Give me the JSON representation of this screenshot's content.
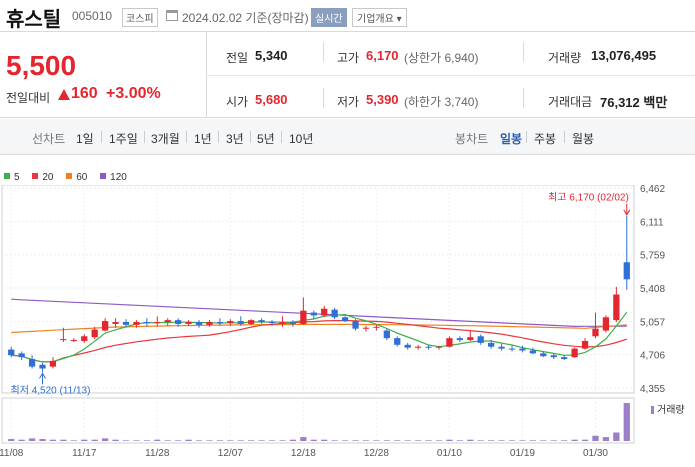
{
  "header": {
    "name": "휴스틸",
    "code": "005010",
    "market": "코스피",
    "date": "2024.02.02 기준(장마감)",
    "realtime": "실시간",
    "company_info": "기업개요"
  },
  "price": {
    "current": "5,500",
    "vs_label": "전일대비",
    "change": "160",
    "rate": "+3.00%"
  },
  "stats": {
    "prev_label": "전일",
    "prev": "5,340",
    "high_label": "고가",
    "high": "6,170",
    "upper_limit": "(상한가 6,940)",
    "volume_label": "거래량",
    "volume": "13,076,495",
    "open_label": "시가",
    "open": "5,680",
    "low_label": "저가",
    "low": "5,390",
    "lower_limit": "(하한가 3,740)",
    "amount_label": "거래대금",
    "amount": "76,312 백만"
  },
  "periods": {
    "line_label": "선차트",
    "line_items": [
      "1일",
      "1주일",
      "3개월",
      "1년",
      "3년",
      "5년",
      "10년"
    ],
    "candle_label": "봉차트",
    "candle_items": [
      "일봉",
      "주봉",
      "월봉"
    ],
    "candle_active": "일봉"
  },
  "legend": [
    {
      "name": "5",
      "color": "#3bb04a"
    },
    {
      "name": "20",
      "color": "#e6393e"
    },
    {
      "name": "60",
      "color": "#f0801f"
    },
    {
      "name": "120",
      "color": "#8e5bc4"
    }
  ],
  "chart_data": {
    "type": "candlestick",
    "y_ticks": [
      4355,
      4706,
      5057,
      5408,
      5759,
      6111,
      6462
    ],
    "y_tick_labels": [
      "4,355",
      "4,706",
      "5,057",
      "5,408",
      "5,759",
      "6,111",
      "6,462"
    ],
    "ylim": [
      4355,
      6462
    ],
    "x_labels": [
      "11/08",
      "11/17",
      "11/28",
      "12/07",
      "12/18",
      "12/28",
      "01/10",
      "01/19",
      "01/30"
    ],
    "x_label_index": [
      0,
      7,
      14,
      21,
      28,
      35,
      42,
      49,
      56
    ],
    "annotations": {
      "max": "최고 6,170 (02/02)",
      "min": "최저 4,520 (11/13)"
    },
    "volume_label": "거래량",
    "candles": [
      {
        "o": 4760,
        "h": 4790,
        "l": 4680,
        "c": 4700
      },
      {
        "o": 4720,
        "h": 4740,
        "l": 4650,
        "c": 4680
      },
      {
        "o": 4660,
        "h": 4700,
        "l": 4560,
        "c": 4580
      },
      {
        "o": 4600,
        "h": 4620,
        "l": 4520,
        "c": 4560
      },
      {
        "o": 4580,
        "h": 4680,
        "l": 4560,
        "c": 4640
      },
      {
        "o": 4860,
        "h": 4990,
        "l": 4840,
        "c": 4870
      },
      {
        "o": 4860,
        "h": 4880,
        "l": 4840,
        "c": 4860
      },
      {
        "o": 4850,
        "h": 4920,
        "l": 4830,
        "c": 4900
      },
      {
        "o": 4890,
        "h": 5000,
        "l": 4870,
        "c": 4970
      },
      {
        "o": 4960,
        "h": 5090,
        "l": 4950,
        "c": 5060
      },
      {
        "o": 5030,
        "h": 5090,
        "l": 4990,
        "c": 5050
      },
      {
        "o": 5050,
        "h": 5080,
        "l": 4990,
        "c": 5020
      },
      {
        "o": 5020,
        "h": 5070,
        "l": 4990,
        "c": 5050
      },
      {
        "o": 5050,
        "h": 5090,
        "l": 5000,
        "c": 5040
      },
      {
        "o": 5040,
        "h": 5110,
        "l": 5010,
        "c": 5050
      },
      {
        "o": 5050,
        "h": 5090,
        "l": 5010,
        "c": 5070
      },
      {
        "o": 5070,
        "h": 5090,
        "l": 5000,
        "c": 5030
      },
      {
        "o": 5030,
        "h": 5070,
        "l": 5010,
        "c": 5050
      },
      {
        "o": 5050,
        "h": 5070,
        "l": 4990,
        "c": 5020
      },
      {
        "o": 5020,
        "h": 5070,
        "l": 5000,
        "c": 5050
      },
      {
        "o": 5050,
        "h": 5090,
        "l": 5010,
        "c": 5040
      },
      {
        "o": 5040,
        "h": 5080,
        "l": 5010,
        "c": 5060
      },
      {
        "o": 5060,
        "h": 5110,
        "l": 5010,
        "c": 5030
      },
      {
        "o": 5030,
        "h": 5080,
        "l": 5020,
        "c": 5070
      },
      {
        "o": 5070,
        "h": 5090,
        "l": 5030,
        "c": 5050
      },
      {
        "o": 5050,
        "h": 5070,
        "l": 5010,
        "c": 5040
      },
      {
        "o": 5040,
        "h": 5110,
        "l": 5000,
        "c": 5050
      },
      {
        "o": 5050,
        "h": 5070,
        "l": 5000,
        "c": 5030
      },
      {
        "o": 5030,
        "h": 5310,
        "l": 5020,
        "c": 5170
      },
      {
        "o": 5150,
        "h": 5170,
        "l": 5080,
        "c": 5120
      },
      {
        "o": 5120,
        "h": 5220,
        "l": 5100,
        "c": 5190
      },
      {
        "o": 5180,
        "h": 5200,
        "l": 5080,
        "c": 5100
      },
      {
        "o": 5100,
        "h": 5110,
        "l": 5050,
        "c": 5060
      },
      {
        "o": 5060,
        "h": 5080,
        "l": 4960,
        "c": 4980
      },
      {
        "o": 4980,
        "h": 5010,
        "l": 4950,
        "c": 4990
      },
      {
        "o": 4990,
        "h": 5020,
        "l": 4960,
        "c": 5000
      },
      {
        "o": 4960,
        "h": 4980,
        "l": 4860,
        "c": 4880
      },
      {
        "o": 4880,
        "h": 4900,
        "l": 4790,
        "c": 4810
      },
      {
        "o": 4810,
        "h": 4830,
        "l": 4760,
        "c": 4780
      },
      {
        "o": 4780,
        "h": 4810,
        "l": 4760,
        "c": 4790
      },
      {
        "o": 4790,
        "h": 4810,
        "l": 4760,
        "c": 4780
      },
      {
        "o": 4780,
        "h": 4800,
        "l": 4760,
        "c": 4790
      },
      {
        "o": 4790,
        "h": 4900,
        "l": 4780,
        "c": 4880
      },
      {
        "o": 4880,
        "h": 4900,
        "l": 4840,
        "c": 4860
      },
      {
        "o": 4860,
        "h": 4960,
        "l": 4850,
        "c": 4890
      },
      {
        "o": 4900,
        "h": 4920,
        "l": 4810,
        "c": 4830
      },
      {
        "o": 4830,
        "h": 4860,
        "l": 4770,
        "c": 4790
      },
      {
        "o": 4790,
        "h": 4820,
        "l": 4750,
        "c": 4770
      },
      {
        "o": 4770,
        "h": 4800,
        "l": 4740,
        "c": 4760
      },
      {
        "o": 4770,
        "h": 4800,
        "l": 4730,
        "c": 4750
      },
      {
        "o": 4750,
        "h": 4780,
        "l": 4710,
        "c": 4720
      },
      {
        "o": 4720,
        "h": 4740,
        "l": 4680,
        "c": 4690
      },
      {
        "o": 4700,
        "h": 4720,
        "l": 4660,
        "c": 4680
      },
      {
        "o": 4680,
        "h": 4700,
        "l": 4650,
        "c": 4660
      },
      {
        "o": 4680,
        "h": 4780,
        "l": 4670,
        "c": 4770
      },
      {
        "o": 4770,
        "h": 4880,
        "l": 4760,
        "c": 4850
      },
      {
        "o": 4900,
        "h": 5150,
        "l": 4880,
        "c": 4980
      },
      {
        "o": 4960,
        "h": 5120,
        "l": 4940,
        "c": 5100
      },
      {
        "o": 5070,
        "h": 5420,
        "l": 5050,
        "c": 5340
      },
      {
        "o": 5680,
        "h": 6170,
        "l": 5390,
        "c": 5500
      }
    ],
    "volumes": [
      3,
      2,
      4,
      3,
      2,
      2,
      1,
      2,
      2,
      4,
      2,
      1,
      1,
      1,
      2,
      1,
      1,
      2,
      1,
      1,
      1,
      1,
      1,
      1,
      1,
      1,
      1,
      2,
      6,
      2,
      2,
      1,
      1,
      1,
      1,
      1,
      1,
      1,
      1,
      1,
      1,
      1,
      2,
      1,
      2,
      1,
      1,
      1,
      1,
      1,
      1,
      1,
      1,
      1,
      2,
      2,
      8,
      6,
      13,
      58
    ],
    "ma": [
      {
        "name": "5",
        "color": "#3bb04a"
      },
      {
        "name": "20",
        "color": "#e6393e"
      },
      {
        "name": "60",
        "color": "#f0801f"
      },
      {
        "name": "120",
        "color": "#8e5bc4"
      }
    ]
  }
}
